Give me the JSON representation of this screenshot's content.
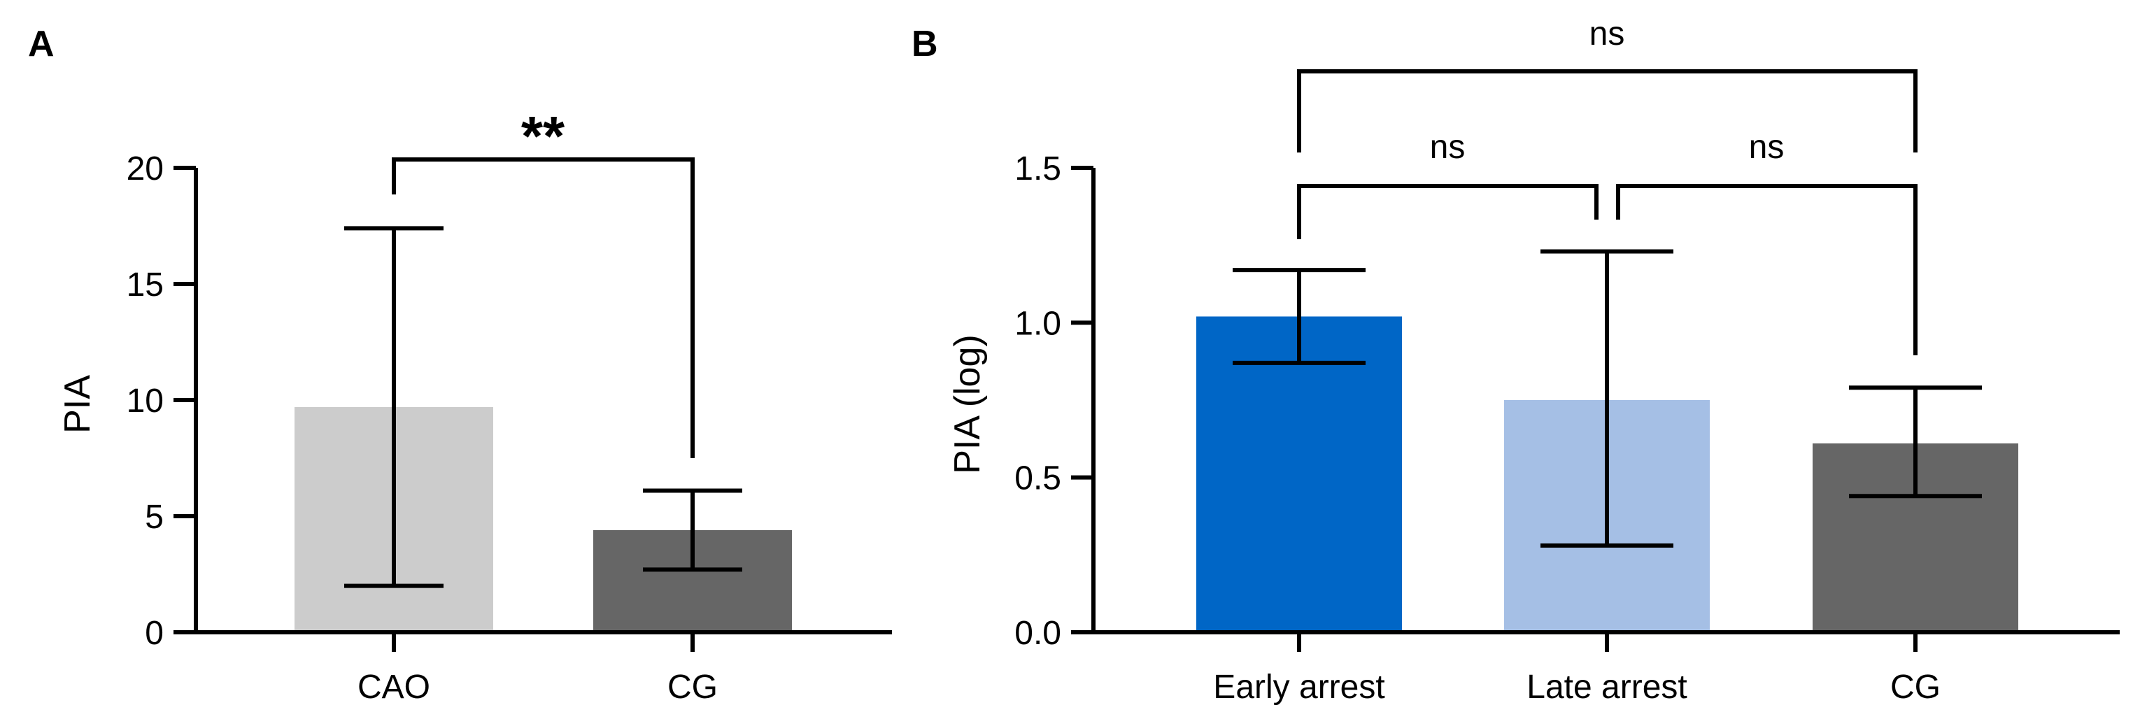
{
  "chart_data": [
    {
      "panel": "A",
      "type": "bar",
      "ylabel": "PIA",
      "xlabel": "",
      "ylim": [
        0,
        20
      ],
      "yticks": [
        0,
        5,
        10,
        15,
        20
      ],
      "categories": [
        "CAO",
        "CG"
      ],
      "values": [
        9.7,
        4.4
      ],
      "error_low": [
        2.0,
        2.7
      ],
      "error_high": [
        17.4,
        6.1
      ],
      "colors": [
        "#cccccc",
        "#666666"
      ],
      "comparisons": [
        {
          "groups": [
            "CAO",
            "CG"
          ],
          "label": "**"
        }
      ]
    },
    {
      "panel": "B",
      "type": "bar",
      "ylabel": "PIA (log)",
      "xlabel": "",
      "ylim": [
        0,
        1.5
      ],
      "yticks": [
        "0.0",
        "0.5",
        "1.0",
        "1.5"
      ],
      "categories": [
        "Early arrest",
        "Late arrest",
        "CG"
      ],
      "values": [
        1.02,
        0.75,
        0.61
      ],
      "error_low": [
        0.87,
        0.28,
        0.44
      ],
      "error_high": [
        1.17,
        1.23,
        0.79
      ],
      "colors": [
        "#0066c6",
        "#a5bfe5",
        "#666666"
      ],
      "comparisons": [
        {
          "groups": [
            "Early arrest",
            "Late arrest"
          ],
          "label": "ns"
        },
        {
          "groups": [
            "Late arrest",
            "CG"
          ],
          "label": "ns"
        },
        {
          "groups": [
            "Early arrest",
            "CG"
          ],
          "label": "ns"
        }
      ]
    }
  ]
}
